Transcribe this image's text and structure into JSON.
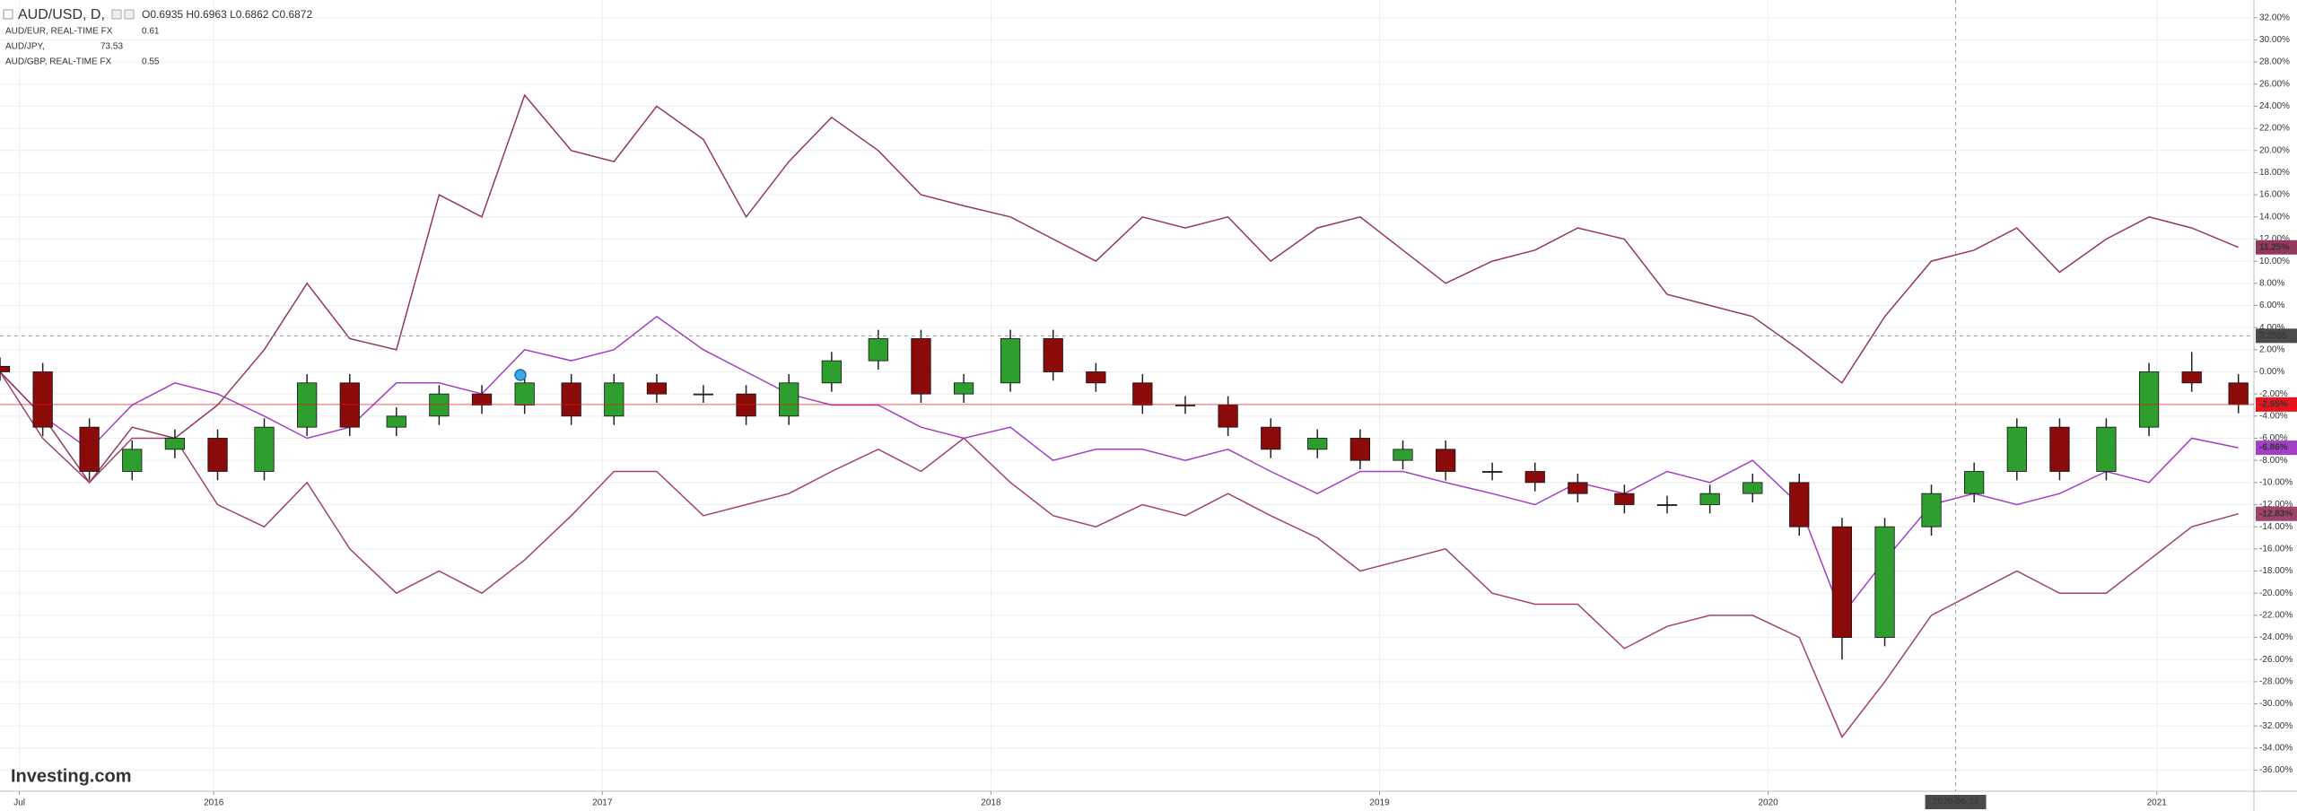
{
  "chart_data": {
    "type": "candlestick",
    "title": "AUD/USD, D,",
    "ohlc_text": "O0.6935 H0.6963 L0.6862 C0.6872",
    "logo": "Investing.com",
    "x": [
      2015.45,
      2015.56,
      2015.68,
      2015.79,
      2015.9,
      2016.01,
      2016.13,
      2016.24,
      2016.35,
      2016.47,
      2016.58,
      2016.69,
      2016.8,
      2016.92,
      2017.03,
      2017.14,
      2017.26,
      2017.37,
      2017.48,
      2017.59,
      2017.71,
      2017.82,
      2017.93,
      2018.05,
      2018.16,
      2018.27,
      2018.39,
      2018.5,
      2018.61,
      2018.72,
      2018.84,
      2018.95,
      2019.06,
      2019.17,
      2019.29,
      2019.4,
      2019.51,
      2019.63,
      2019.74,
      2019.85,
      2019.96,
      2020.08,
      2020.19,
      2020.3,
      2020.42,
      2020.53,
      2020.64,
      2020.75,
      2020.87,
      2020.98,
      2021.09,
      2021.21
    ],
    "xlim": [
      2015.45,
      2021.25
    ],
    "xticks": [
      {
        "value": 2015.5,
        "label": "Jul"
      },
      2016,
      2017,
      2018,
      2019,
      2020,
      2021
    ],
    "ylim": [
      -37.9,
      33.6
    ],
    "yticks": [
      {
        "value": 32,
        "label": "32.00%"
      },
      {
        "value": 30,
        "label": "30.00%"
      },
      {
        "value": 28,
        "label": "28.00%"
      },
      {
        "value": 26,
        "label": "26.00%"
      },
      {
        "value": 24,
        "label": "24.00%"
      },
      {
        "value": 22,
        "label": "22.00%"
      },
      {
        "value": 20,
        "label": "20.00%"
      },
      {
        "value": 18,
        "label": "18.00%"
      },
      {
        "value": 16,
        "label": "16.00%"
      },
      {
        "value": 14,
        "label": "14.00%"
      },
      {
        "value": 12,
        "label": "12.00%"
      },
      {
        "value": 10,
        "label": "10.00%"
      },
      {
        "value": 8,
        "label": "8.00%"
      },
      {
        "value": 6,
        "label": "6.00%"
      },
      {
        "value": 4,
        "label": "4.00%"
      },
      {
        "value": 2,
        "label": "2.00%"
      },
      {
        "value": 0,
        "label": "0.00%"
      },
      {
        "value": -2,
        "label": "-2.00%"
      },
      {
        "value": -4,
        "label": "-4.00%"
      },
      {
        "value": -6,
        "label": "-6.00%"
      },
      {
        "value": -8,
        "label": "-8.00%"
      },
      {
        "value": -10,
        "label": "-10.00%"
      },
      {
        "value": -12,
        "label": "-12.00%"
      },
      {
        "value": -14,
        "label": "-14.00%"
      },
      {
        "value": -16,
        "label": "-16.00%"
      },
      {
        "value": -18,
        "label": "-18.00%"
      },
      {
        "value": -20,
        "label": "-20.00%"
      },
      {
        "value": -22,
        "label": "-22.00%"
      },
      {
        "value": -24,
        "label": "-24.00%"
      },
      {
        "value": -26,
        "label": "-26.00%"
      },
      {
        "value": -28,
        "label": "-28.00%"
      },
      {
        "value": -30,
        "label": "-30.00%"
      },
      {
        "value": -32,
        "label": "-32.00%"
      },
      {
        "value": -34,
        "label": "-34.00%"
      },
      {
        "value": -36,
        "label": "-36.00%"
      }
    ],
    "grid": true,
    "candles": {
      "up_color": "#2e9e2e",
      "down_color": "#8b0a0a",
      "wick_color": "#222222",
      "price_line_color": "#e8141d",
      "last_label": "-2.95%",
      "open": [
        0.5,
        0,
        -5,
        -9,
        -7,
        -6,
        -9,
        -5,
        -1,
        -5,
        -4,
        -2,
        -3,
        -1,
        -4,
        -1,
        -2,
        -2,
        -4,
        -1,
        1,
        3,
        -2,
        -1,
        3,
        0,
        -1,
        -3,
        -3,
        -5,
        -7,
        -6,
        -8,
        -7,
        -9,
        -9,
        -10,
        -11,
        -12,
        -12,
        -11,
        -10,
        -14,
        -24,
        -14,
        -11,
        -9,
        -5,
        -9,
        -5,
        0,
        -1
      ],
      "high": [
        1.3,
        0.8,
        -4.2,
        -6.2,
        -5.2,
        -5.2,
        -4.2,
        -0.2,
        -0.2,
        -3.2,
        -1.2,
        -1.2,
        -0.2,
        -0.2,
        -0.2,
        -0.2,
        -1.2,
        -1.2,
        -0.2,
        1.8,
        3.8,
        3.8,
        -0.2,
        3.8,
        3.8,
        0.8,
        -0.2,
        -2.2,
        -2.2,
        -4.2,
        -5.2,
        -5.2,
        -6.2,
        -6.2,
        -8.2,
        -8.2,
        -9.2,
        -10.2,
        -11.2,
        -10.2,
        -9.2,
        -9.2,
        -13.2,
        -13.2,
        -10.2,
        -8.2,
        -4.2,
        -4.2,
        -4.2,
        0.8,
        1.8,
        -0.2
      ],
      "low": [
        -0.8,
        -5.8,
        -9.8,
        -9.8,
        -7.8,
        -9.8,
        -9.8,
        -5.8,
        -5.8,
        -5.8,
        -4.8,
        -3.8,
        -3.8,
        -4.8,
        -4.8,
        -2.8,
        -2.8,
        -4.8,
        -4.8,
        -1.8,
        0.2,
        -2.8,
        -2.8,
        -1.8,
        -0.8,
        -1.8,
        -3.8,
        -3.8,
        -5.8,
        -7.8,
        -7.8,
        -8.8,
        -8.8,
        -9.8,
        -9.8,
        -10.8,
        -11.8,
        -12.8,
        -12.8,
        -12.8,
        -11.8,
        -14.8,
        -26,
        -24.8,
        -14.8,
        -11.8,
        -9.8,
        -9.8,
        -9.8,
        -5.8,
        -1.8,
        -3.75
      ],
      "close": [
        0,
        -5,
        -9,
        -7,
        -6,
        -9,
        -5,
        -1,
        -5,
        -4,
        -2,
        -3,
        -1,
        -4,
        -1,
        -2,
        -2,
        -4,
        -1,
        1,
        3,
        -2,
        -1,
        3,
        0,
        -1,
        -3,
        -3,
        -5,
        -7,
        -6,
        -8,
        -7,
        -9,
        -9,
        -10,
        -11,
        -12,
        -12,
        -11,
        -10,
        -14,
        -24,
        -14,
        -11,
        -9,
        -5,
        -9,
        -5,
        0,
        -1,
        -2.95
      ]
    },
    "series": [
      {
        "name": "AUD/EUR, REAL-TIME FX",
        "legend_value": "0.61",
        "color": "#a23fc6",
        "last_label": "-6.86%",
        "values": [
          0,
          -4,
          -7,
          -3,
          -1,
          -2,
          -4,
          -6,
          -5,
          -1,
          -1,
          -2,
          2,
          1,
          2,
          5,
          2,
          0,
          -2,
          -3,
          -3,
          -5,
          -6,
          -5,
          -8,
          -7,
          -7,
          -8,
          -7,
          -9,
          -11,
          -9,
          -9,
          -10,
          -11,
          -12,
          -10,
          -11,
          -9,
          -10,
          -8,
          -12,
          -22,
          -17,
          -12,
          -11,
          -12,
          -11,
          -9,
          -10,
          -6,
          -6.86
        ]
      },
      {
        "name": "AUD/JPY,",
        "legend_value": "73.53",
        "color": "#a0436b",
        "last_label": "-12.83%",
        "values": [
          0,
          -6,
          -10,
          -6,
          -6,
          -12,
          -14,
          -10,
          -16,
          -20,
          -18,
          -20,
          -17,
          -13,
          -9,
          -9,
          -13,
          -12,
          -11,
          -9,
          -7,
          -9,
          -6,
          -10,
          -13,
          -14,
          -12,
          -13,
          -11,
          -13,
          -15,
          -18,
          -17,
          -16,
          -20,
          -21,
          -21,
          -25,
          -23,
          -22,
          -22,
          -24,
          -33,
          -28,
          -22,
          -20,
          -18,
          -20,
          -20,
          -17,
          -14,
          -12.83
        ]
      },
      {
        "name": "AUD/GBP, REAL-TIME FX",
        "legend_value": "0.55",
        "color": "#94385f",
        "last_label": "11.25%",
        "values": [
          0,
          -4,
          -10,
          -5,
          -6,
          -3,
          2,
          8,
          3,
          2,
          16,
          14,
          25,
          20,
          19,
          24,
          21,
          14,
          19,
          23,
          20,
          16,
          15,
          14,
          12,
          10,
          14,
          13,
          14,
          10,
          13,
          14,
          11,
          8,
          10,
          11,
          13,
          12,
          7,
          6,
          5,
          2,
          -1,
          5,
          10,
          11,
          13,
          9,
          12,
          14,
          13,
          11.25
        ]
      }
    ],
    "crosshair": {
      "x": "2020-06-24",
      "y": 3.2555
    }
  }
}
